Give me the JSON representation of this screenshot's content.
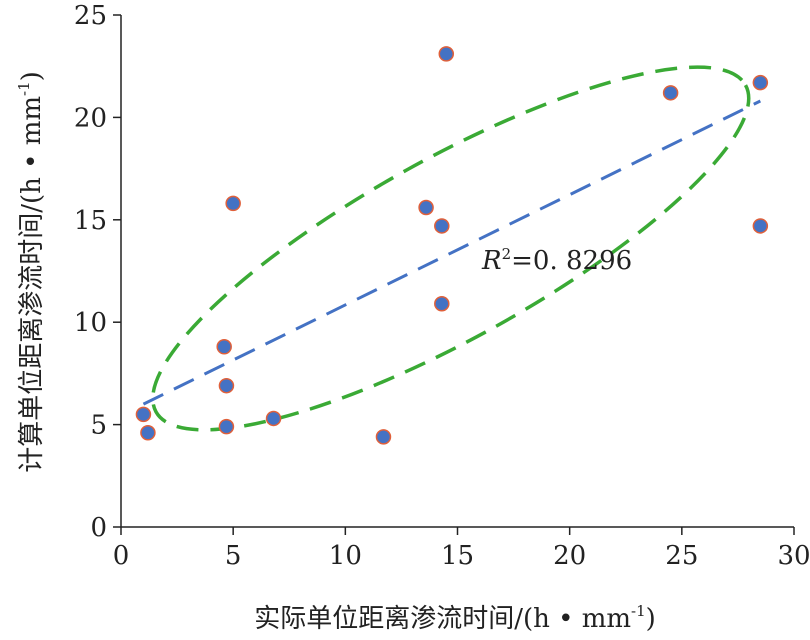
{
  "chart_data": {
    "type": "scatter",
    "xlabel": "实际单位距离渗流时间/(h • mm",
    "xlabel_sup": "-1",
    "xlabel_close": ")",
    "ylabel": "计算单位距离渗流时间/(h • mm",
    "ylabel_sup": "-1",
    "ylabel_close": ")",
    "xlim": [
      0,
      30
    ],
    "ylim": [
      0,
      25
    ],
    "xticks": [
      0,
      5,
      10,
      15,
      20,
      25,
      30
    ],
    "yticks": [
      0,
      5,
      10,
      15,
      20,
      25
    ],
    "grid": false,
    "series": [
      {
        "marker": "circle",
        "color": "#4472c4",
        "edge_color": "#e0603a",
        "points": [
          [
            1.0,
            5.5
          ],
          [
            1.2,
            4.6
          ],
          [
            4.6,
            8.8
          ],
          [
            4.7,
            4.9
          ],
          [
            4.7,
            6.9
          ],
          [
            5.0,
            15.8
          ],
          [
            6.8,
            5.3
          ],
          [
            11.7,
            4.4
          ],
          [
            13.6,
            15.6
          ],
          [
            14.3,
            14.7
          ],
          [
            14.3,
            10.9
          ],
          [
            14.5,
            23.1
          ],
          [
            24.5,
            21.2
          ],
          [
            28.5,
            21.7
          ],
          [
            28.5,
            14.7
          ]
        ]
      }
    ],
    "trendline": {
      "x": [
        1.0,
        28.5
      ],
      "y": [
        6.0,
        20.8
      ],
      "color": "#4472c4",
      "style": "dashed"
    },
    "annotation": {
      "italic": "R",
      "sup": "2",
      "text": "=0. 8296",
      "x": 16.2,
      "y": 12.6
    },
    "ellipse": {
      "center": [
        14.7,
        13.6
      ],
      "semi_axes": [
        15.2,
        5.0
      ],
      "angle_deg": 29,
      "color": "#3aaa35",
      "style": "dashed"
    }
  }
}
